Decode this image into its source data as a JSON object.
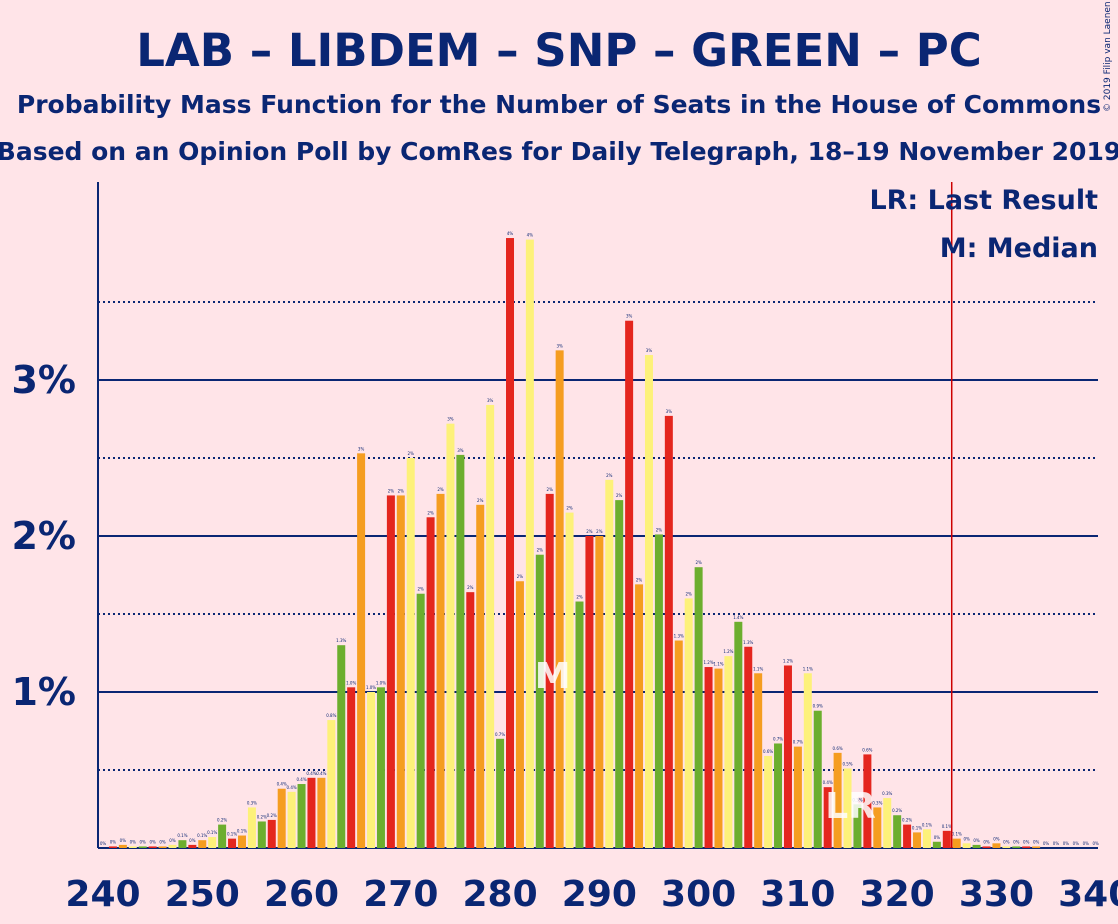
{
  "chart_data": {
    "type": "bar",
    "title": "LAB – LIBDEM – SNP – GREEN – PC",
    "subtitle": "Probability Mass Function for the Number of Seats in the House of Commons",
    "subtitle2": "Based on an Opinion Poll by ComRes for Daily Telegraph, 18–19 November 2019",
    "copyright": "© 2019 Filip van Laenen",
    "legend": {
      "lr": "LR: Last Result",
      "m": "M: Median",
      "placement": "top-right"
    },
    "marker_median": "M",
    "marker_lr": "LR",
    "median_seat": 285,
    "last_result_seat": 326,
    "x_ticks": [
      "240",
      "250",
      "260",
      "270",
      "280",
      "290",
      "300",
      "310",
      "320",
      "330",
      "340"
    ],
    "y_ticks": [
      "1%",
      "2%",
      "3%"
    ],
    "y_solid_lines": [
      1,
      2,
      3
    ],
    "y_dotted_lines": [
      0.5,
      1.5,
      2.5,
      3.5
    ],
    "xlim": [
      240,
      340
    ],
    "ylim": [
      0,
      4.25
    ],
    "colors": [
      "#6CAE2E",
      "#E4261E",
      "#F59D20",
      "#FDF17A"
    ],
    "line_color": "#0A2673",
    "lr_color": "#CC0000",
    "bars": [
      {
        "seat": 240,
        "value": 0,
        "label": "0%"
      },
      {
        "seat": 241,
        "value": 0.01,
        "label": "0%"
      },
      {
        "seat": 242,
        "value": 0.02,
        "label": "0%"
      },
      {
        "seat": 243,
        "value": 0.01,
        "label": "0%"
      },
      {
        "seat": 244,
        "value": 0.01,
        "label": "0%"
      },
      {
        "seat": 245,
        "value": 0.01,
        "label": "0%"
      },
      {
        "seat": 246,
        "value": 0.01,
        "label": "0%"
      },
      {
        "seat": 247,
        "value": 0.02,
        "label": "0%"
      },
      {
        "seat": 248,
        "value": 0.05,
        "label": "0.1%"
      },
      {
        "seat": 249,
        "value": 0.02,
        "label": "0%"
      },
      {
        "seat": 250,
        "value": 0.05,
        "label": "0.1%"
      },
      {
        "seat": 251,
        "value": 0.07,
        "label": "0.1%"
      },
      {
        "seat": 252,
        "value": 0.15,
        "label": "0.2%"
      },
      {
        "seat": 253,
        "value": 0.06,
        "label": "0.1%"
      },
      {
        "seat": 254,
        "value": 0.08,
        "label": "0.1%"
      },
      {
        "seat": 255,
        "value": 0.26,
        "label": "0.3%"
      },
      {
        "seat": 256,
        "value": 0.17,
        "label": "0.2%"
      },
      {
        "seat": 257,
        "value": 0.18,
        "label": "0.2%"
      },
      {
        "seat": 258,
        "value": 0.38,
        "label": "0.4%"
      },
      {
        "seat": 259,
        "value": 0.36,
        "label": "0.4%"
      },
      {
        "seat": 260,
        "value": 0.41,
        "label": "0.4%"
      },
      {
        "seat": 261,
        "value": 0.45,
        "label": "0.4%"
      },
      {
        "seat": 262,
        "value": 0.45,
        "label": "0.4%"
      },
      {
        "seat": 263,
        "value": 0.82,
        "label": "0.8%"
      },
      {
        "seat": 264,
        "value": 1.3,
        "label": "1.3%"
      },
      {
        "seat": 265,
        "value": 1.03,
        "label": "1.0%"
      },
      {
        "seat": 266,
        "value": 2.53,
        "label": "3%"
      },
      {
        "seat": 267,
        "value": 1.0,
        "label": "1.0%"
      },
      {
        "seat": 268,
        "value": 1.03,
        "label": "1.0%"
      },
      {
        "seat": 269,
        "value": 2.26,
        "label": "2%"
      },
      {
        "seat": 270,
        "value": 2.26,
        "label": "2%"
      },
      {
        "seat": 271,
        "value": 2.5,
        "label": "2%"
      },
      {
        "seat": 272,
        "value": 1.63,
        "label": "2%"
      },
      {
        "seat": 273,
        "value": 2.12,
        "label": "2%"
      },
      {
        "seat": 274,
        "value": 2.27,
        "label": "2%"
      },
      {
        "seat": 275,
        "value": 2.72,
        "label": "3%"
      },
      {
        "seat": 276,
        "value": 2.52,
        "label": "3%"
      },
      {
        "seat": 277,
        "value": 1.64,
        "label": "2%"
      },
      {
        "seat": 278,
        "value": 2.2,
        "label": "2%"
      },
      {
        "seat": 279,
        "value": 2.84,
        "label": "3%"
      },
      {
        "seat": 280,
        "value": 0.7,
        "label": "0.7%"
      },
      {
        "seat": 281,
        "value": 3.91,
        "label": "4%"
      },
      {
        "seat": 282,
        "value": 1.71,
        "label": "2%"
      },
      {
        "seat": 283,
        "value": 3.9,
        "label": "4%"
      },
      {
        "seat": 284,
        "value": 1.88,
        "label": "2%"
      },
      {
        "seat": 285,
        "value": 2.27,
        "label": "2%"
      },
      {
        "seat": 286,
        "value": 3.19,
        "label": "3%"
      },
      {
        "seat": 287,
        "value": 2.15,
        "label": "2%"
      },
      {
        "seat": 288,
        "value": 1.58,
        "label": "2%"
      },
      {
        "seat": 289,
        "value": 2.0,
        "label": "2%"
      },
      {
        "seat": 290,
        "value": 2.0,
        "label": "2%"
      },
      {
        "seat": 291,
        "value": 2.36,
        "label": "2%"
      },
      {
        "seat": 292,
        "value": 2.23,
        "label": "2%"
      },
      {
        "seat": 293,
        "value": 3.38,
        "label": "3%"
      },
      {
        "seat": 294,
        "value": 1.69,
        "label": "2%"
      },
      {
        "seat": 295,
        "value": 3.16,
        "label": "3%"
      },
      {
        "seat": 296,
        "value": 2.01,
        "label": "2%"
      },
      {
        "seat": 297,
        "value": 2.77,
        "label": "3%"
      },
      {
        "seat": 298,
        "value": 1.33,
        "label": "1.3%"
      },
      {
        "seat": 299,
        "value": 1.6,
        "label": "2%"
      },
      {
        "seat": 300,
        "value": 1.8,
        "label": "2%"
      },
      {
        "seat": 301,
        "value": 1.16,
        "label": "1.2%"
      },
      {
        "seat": 302,
        "value": 1.15,
        "label": "1.1%"
      },
      {
        "seat": 303,
        "value": 1.23,
        "label": "1.2%"
      },
      {
        "seat": 304,
        "value": 1.45,
        "label": "1.4%"
      },
      {
        "seat": 305,
        "value": 1.29,
        "label": "1.3%"
      },
      {
        "seat": 306,
        "value": 1.12,
        "label": "1.1%"
      },
      {
        "seat": 307,
        "value": 0.59,
        "label": "0.6%"
      },
      {
        "seat": 308,
        "value": 0.67,
        "label": "0.7%"
      },
      {
        "seat": 309,
        "value": 1.17,
        "label": "1.2%"
      },
      {
        "seat": 310,
        "value": 0.65,
        "label": "0.7%"
      },
      {
        "seat": 311,
        "value": 1.12,
        "label": "1.1%"
      },
      {
        "seat": 312,
        "value": 0.88,
        "label": "0.9%"
      },
      {
        "seat": 313,
        "value": 0.39,
        "label": "0.4%"
      },
      {
        "seat": 314,
        "value": 0.61,
        "label": "0.6%"
      },
      {
        "seat": 315,
        "value": 0.51,
        "label": "0.5%"
      },
      {
        "seat": 316,
        "value": 0.28,
        "label": "0.3%"
      },
      {
        "seat": 317,
        "value": 0.6,
        "label": "0.6%"
      },
      {
        "seat": 318,
        "value": 0.26,
        "label": "0.3%"
      },
      {
        "seat": 319,
        "value": 0.32,
        "label": "0.3%"
      },
      {
        "seat": 320,
        "value": 0.21,
        "label": "0.2%"
      },
      {
        "seat": 321,
        "value": 0.15,
        "label": "0.2%"
      },
      {
        "seat": 322,
        "value": 0.1,
        "label": "0.1%"
      },
      {
        "seat": 323,
        "value": 0.12,
        "label": "0.1%"
      },
      {
        "seat": 324,
        "value": 0.04,
        "label": "0%"
      },
      {
        "seat": 325,
        "value": 0.11,
        "label": "0.1%"
      },
      {
        "seat": 326,
        "value": 0.06,
        "label": "0.1%"
      },
      {
        "seat": 327,
        "value": 0.03,
        "label": "0%"
      },
      {
        "seat": 328,
        "value": 0.02,
        "label": "0%"
      },
      {
        "seat": 329,
        "value": 0.01,
        "label": "0%"
      },
      {
        "seat": 330,
        "value": 0.03,
        "label": "0%"
      },
      {
        "seat": 331,
        "value": 0.01,
        "label": "0%"
      },
      {
        "seat": 332,
        "value": 0.01,
        "label": "0%"
      },
      {
        "seat": 333,
        "value": 0.01,
        "label": "0%"
      },
      {
        "seat": 334,
        "value": 0.01,
        "label": "0%"
      },
      {
        "seat": 335,
        "value": 0,
        "label": "0%"
      },
      {
        "seat": 336,
        "value": 0,
        "label": "0%"
      },
      {
        "seat": 337,
        "value": 0,
        "label": "0%"
      },
      {
        "seat": 338,
        "value": 0,
        "label": "0%"
      },
      {
        "seat": 339,
        "value": 0,
        "label": "0%"
      },
      {
        "seat": 340,
        "value": 0,
        "label": "0%"
      }
    ]
  }
}
